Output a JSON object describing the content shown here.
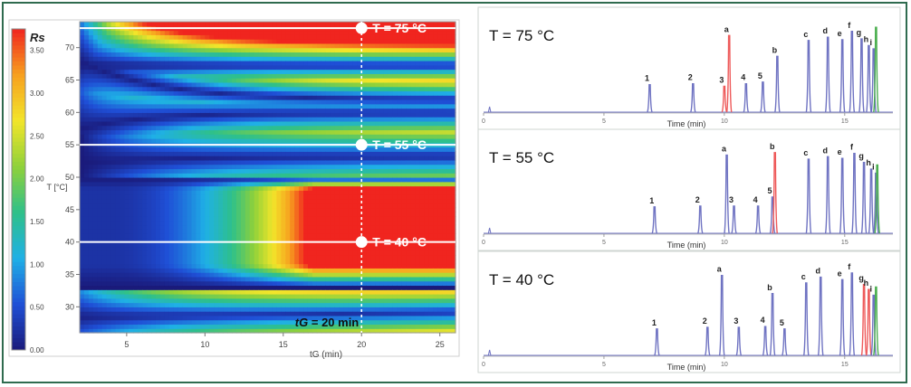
{
  "chart_data": [
    {
      "type": "heatmap",
      "title": "",
      "xlabel": "tG (min)",
      "ylabel": "T [°C]",
      "xlim": [
        2,
        26
      ],
      "ylim": [
        26,
        74
      ],
      "x_ticks": [
        "5",
        "10",
        "15",
        "20",
        "25"
      ],
      "x_tick_values": [
        5,
        10,
        15,
        20,
        25
      ],
      "y_ticks": [
        "30",
        "35",
        "40",
        "45",
        "50",
        "55",
        "60",
        "65",
        "70"
      ],
      "y_tick_values": [
        30,
        35,
        40,
        45,
        50,
        55,
        60,
        65,
        70
      ],
      "colorbar": {
        "title": "Rs",
        "range": [
          0,
          3.75
        ],
        "tick_labels": [
          "0.00",
          "0.50",
          "1.00",
          "1.50",
          "2.00",
          "2.50",
          "3.00",
          "3.50"
        ],
        "tick_values": [
          0,
          0.5,
          1.0,
          1.5,
          2.0,
          2.5,
          3.0,
          3.5
        ],
        "colors": [
          "#1a1a7a",
          "#1f4fd6",
          "#1fb0e6",
          "#2ec08a",
          "#8fd13a",
          "#f2e52a",
          "#f7a11f",
          "#f0251f"
        ]
      },
      "markers": [
        {
          "label": "T = 75 °C",
          "T": 73
        },
        {
          "label": "T = 55 °C",
          "T": 55
        },
        {
          "label": "T = 40 °C",
          "T": 40
        }
      ],
      "vertical_line": {
        "label": "tG = 20 min",
        "label_prefix": "tG",
        "label_suffix": " = 20 min",
        "tG": 20
      }
    },
    {
      "type": "line",
      "title": "T = 75 °C",
      "xlabel": "Time (min)",
      "xlim": [
        0,
        17
      ],
      "x_ticks": [
        "0",
        "5",
        "10",
        "15"
      ],
      "x_tick_values": [
        0,
        5,
        10,
        15
      ],
      "colors": {
        "normal": "#6f73c2",
        "red": "#ee5a5a",
        "green": "#4caf50"
      },
      "peaks": [
        {
          "label": "1",
          "t": 6.9,
          "h": 0.33,
          "color": "normal"
        },
        {
          "label": "2",
          "t": 8.7,
          "h": 0.34,
          "color": "normal"
        },
        {
          "label": "3",
          "t": 10.0,
          "h": 0.31,
          "color": "red"
        },
        {
          "label": "a",
          "t": 10.2,
          "h": 0.92,
          "color": "red"
        },
        {
          "label": "4",
          "t": 10.9,
          "h": 0.34,
          "color": "normal"
        },
        {
          "label": "5",
          "t": 11.6,
          "h": 0.36,
          "color": "normal"
        },
        {
          "label": "b",
          "t": 12.2,
          "h": 0.67,
          "color": "normal"
        },
        {
          "label": "c",
          "t": 13.5,
          "h": 0.86,
          "color": "normal"
        },
        {
          "label": "d",
          "t": 14.3,
          "h": 0.9,
          "color": "normal"
        },
        {
          "label": "e",
          "t": 14.9,
          "h": 0.87,
          "color": "normal"
        },
        {
          "label": "f",
          "t": 15.3,
          "h": 0.97,
          "color": "normal"
        },
        {
          "label": "g",
          "t": 15.7,
          "h": 0.88,
          "color": "normal"
        },
        {
          "label": "h",
          "t": 16.0,
          "h": 0.8,
          "color": "normal"
        },
        {
          "label": "i",
          "t": 16.2,
          "h": 0.76,
          "color": "normal"
        },
        {
          "label": "",
          "t": 16.3,
          "h": 1.02,
          "color": "green"
        }
      ]
    },
    {
      "type": "line",
      "title": "T = 55 °C",
      "xlabel": "Time (min)",
      "xlim": [
        0,
        17
      ],
      "x_ticks": [
        "0",
        "5",
        "10",
        "15"
      ],
      "x_tick_values": [
        0,
        5,
        10,
        15
      ],
      "colors": {
        "normal": "#6f73c2",
        "red": "#ee5a5a",
        "green": "#4caf50"
      },
      "peaks": [
        {
          "label": "1",
          "t": 7.1,
          "h": 0.32,
          "color": "normal"
        },
        {
          "label": "2",
          "t": 9.0,
          "h": 0.33,
          "color": "normal"
        },
        {
          "label": "a",
          "t": 10.1,
          "h": 0.95,
          "color": "normal"
        },
        {
          "label": "3",
          "t": 10.4,
          "h": 0.33,
          "color": "normal"
        },
        {
          "label": "4",
          "t": 11.4,
          "h": 0.33,
          "color": "normal"
        },
        {
          "label": "5",
          "t": 12.0,
          "h": 0.44,
          "color": "normal"
        },
        {
          "label": "b",
          "t": 12.1,
          "h": 0.98,
          "color": "red"
        },
        {
          "label": "c",
          "t": 13.5,
          "h": 0.9,
          "color": "normal"
        },
        {
          "label": "d",
          "t": 14.3,
          "h": 0.93,
          "color": "normal"
        },
        {
          "label": "e",
          "t": 14.9,
          "h": 0.91,
          "color": "normal"
        },
        {
          "label": "f",
          "t": 15.4,
          "h": 0.97,
          "color": "normal"
        },
        {
          "label": "g",
          "t": 15.8,
          "h": 0.86,
          "color": "normal"
        },
        {
          "label": "h",
          "t": 16.1,
          "h": 0.78,
          "color": "normal"
        },
        {
          "label": "i",
          "t": 16.3,
          "h": 0.73,
          "color": "normal"
        },
        {
          "label": "",
          "t": 16.35,
          "h": 0.83,
          "color": "green"
        }
      ]
    },
    {
      "type": "line",
      "title": "T = 40 °C",
      "xlabel": "Time (min)",
      "xlim": [
        0,
        17
      ],
      "x_ticks": [
        "0",
        "5",
        "10",
        "15"
      ],
      "x_tick_values": [
        0,
        5,
        10,
        15
      ],
      "colors": {
        "normal": "#6f73c2",
        "red": "#ee5a5a",
        "green": "#4caf50"
      },
      "peaks": [
        {
          "label": "1",
          "t": 7.2,
          "h": 0.32,
          "color": "normal"
        },
        {
          "label": "2",
          "t": 9.3,
          "h": 0.34,
          "color": "normal"
        },
        {
          "label": "a",
          "t": 9.9,
          "h": 0.97,
          "color": "normal"
        },
        {
          "label": "3",
          "t": 10.6,
          "h": 0.34,
          "color": "normal"
        },
        {
          "label": "4",
          "t": 11.7,
          "h": 0.35,
          "color": "normal"
        },
        {
          "label": "b",
          "t": 12.0,
          "h": 0.75,
          "color": "normal"
        },
        {
          "label": "5",
          "t": 12.5,
          "h": 0.32,
          "color": "normal"
        },
        {
          "label": "c",
          "t": 13.4,
          "h": 0.88,
          "color": "normal"
        },
        {
          "label": "d",
          "t": 14.0,
          "h": 0.95,
          "color": "normal"
        },
        {
          "label": "e",
          "t": 14.9,
          "h": 0.92,
          "color": "normal"
        },
        {
          "label": "f",
          "t": 15.3,
          "h": 1.0,
          "color": "normal"
        },
        {
          "label": "g",
          "t": 15.8,
          "h": 0.86,
          "color": "red"
        },
        {
          "label": "h",
          "t": 16.0,
          "h": 0.8,
          "color": "red"
        },
        {
          "label": "i",
          "t": 16.2,
          "h": 0.73,
          "color": "normal"
        },
        {
          "label": "",
          "t": 16.3,
          "h": 0.83,
          "color": "green"
        }
      ]
    }
  ]
}
